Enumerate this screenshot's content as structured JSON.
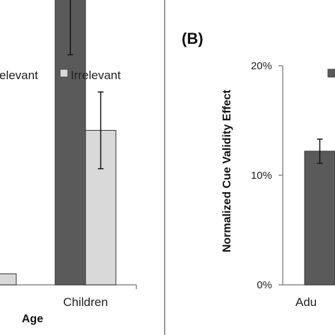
{
  "chart_data": [
    {
      "panel": "",
      "type": "bar",
      "categories": [
        "",
        "Children"
      ],
      "series": [
        {
          "name": "Relevant",
          "values": [
            null,
            0.265
          ]
        },
        {
          "name": "Irrelevant",
          "values": [
            0.01,
            0.141
          ]
        }
      ],
      "errors": [
        {
          "name": "Relevant",
          "values": [
            null,
            0.055
          ]
        },
        {
          "name": "Irrelevant",
          "values": [
            null,
            0.035
          ]
        }
      ],
      "legend": [
        "Relevant",
        "Irrelevant"
      ],
      "legend_visible_text": [
        "elevant",
        "Irrelevant"
      ],
      "xlabel": "Age",
      "ylabel": "",
      "colors": {
        "Relevant": "#5a5a5a",
        "Irrelevant": "#d9d9d9"
      },
      "legend_position": "top"
    },
    {
      "panel": "(B)",
      "type": "bar",
      "categories": [
        "Adu"
      ],
      "series": [
        {
          "name": "",
          "values": [
            0.122
          ]
        }
      ],
      "errors": [
        {
          "name": "",
          "values": [
            0.011
          ]
        }
      ],
      "xlabel": "",
      "ylabel": "Normalized Cue Validity Effect",
      "ylim": [
        0,
        0.2
      ],
      "yticks": [
        "0%",
        "10%",
        "20%"
      ],
      "colors": {
        "bar": "#5a5a5a"
      },
      "legend_position": "top-right"
    }
  ]
}
